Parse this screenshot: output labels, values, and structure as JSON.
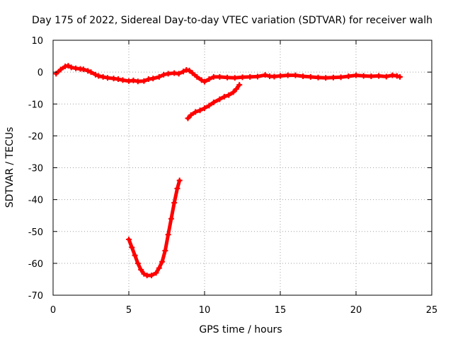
{
  "chart_data": {
    "type": "scatter",
    "title": "Day 175 of 2022, Sidereal Day-to-day VTEC variation (SDTVAR) for receiver walh",
    "xlabel": "GPS time / hours",
    "ylabel": "SDTVAR / TECUs",
    "xlim": [
      0,
      25
    ],
    "ylim": [
      -70,
      10
    ],
    "xticks": [
      0,
      5,
      10,
      15,
      20,
      25
    ],
    "yticks": [
      10,
      0,
      -10,
      -20,
      -30,
      -40,
      -50,
      -60,
      -70
    ],
    "xtick_labels": [
      "0",
      "5",
      "10",
      "15",
      "20",
      "25"
    ],
    "ytick_labels": [
      "10",
      "0",
      "-10",
      "-20",
      "-30",
      "-40",
      "-50",
      "-60",
      "-70"
    ],
    "grid": true,
    "marker": "+",
    "color": "#ff0000",
    "series": [
      {
        "name": "main-track",
        "points": [
          [
            0.2,
            -0.5
          ],
          [
            0.5,
            0.8
          ],
          [
            0.8,
            1.8
          ],
          [
            1.0,
            2.0
          ],
          [
            1.2,
            1.5
          ],
          [
            1.5,
            1.2
          ],
          [
            1.8,
            1.0
          ],
          [
            2.0,
            0.9
          ],
          [
            2.3,
            0.4
          ],
          [
            2.5,
            0.0
          ],
          [
            2.8,
            -0.8
          ],
          [
            3.0,
            -1.2
          ],
          [
            3.3,
            -1.5
          ],
          [
            3.6,
            -1.8
          ],
          [
            4.0,
            -2.0
          ],
          [
            4.3,
            -2.2
          ],
          [
            4.6,
            -2.5
          ],
          [
            5.0,
            -2.8
          ],
          [
            5.3,
            -2.6
          ],
          [
            5.6,
            -2.9
          ],
          [
            6.0,
            -2.8
          ],
          [
            6.3,
            -2.2
          ],
          [
            6.6,
            -2.0
          ],
          [
            7.0,
            -1.5
          ],
          [
            7.3,
            -0.8
          ],
          [
            7.6,
            -0.5
          ],
          [
            8.0,
            -0.3
          ],
          [
            8.3,
            -0.5
          ],
          [
            8.6,
            0.2
          ],
          [
            8.8,
            0.7
          ],
          [
            9.0,
            0.5
          ],
          [
            9.2,
            -0.3
          ],
          [
            9.5,
            -1.5
          ],
          [
            9.8,
            -2.5
          ],
          [
            10.0,
            -3.0
          ],
          [
            10.3,
            -2.2
          ],
          [
            10.6,
            -1.5
          ],
          [
            11.0,
            -1.5
          ],
          [
            11.5,
            -1.7
          ],
          [
            12.0,
            -1.8
          ],
          [
            12.5,
            -1.6
          ],
          [
            13.0,
            -1.5
          ],
          [
            13.5,
            -1.4
          ],
          [
            14.0,
            -0.9
          ],
          [
            14.3,
            -1.3
          ],
          [
            14.6,
            -1.4
          ],
          [
            15.0,
            -1.2
          ],
          [
            15.5,
            -1.0
          ],
          [
            16.0,
            -1.0
          ],
          [
            16.5,
            -1.3
          ],
          [
            17.0,
            -1.5
          ],
          [
            17.5,
            -1.7
          ],
          [
            18.0,
            -1.8
          ],
          [
            18.5,
            -1.7
          ],
          [
            19.0,
            -1.6
          ],
          [
            19.5,
            -1.3
          ],
          [
            20.0,
            -1.0
          ],
          [
            20.5,
            -1.2
          ],
          [
            21.0,
            -1.3
          ],
          [
            21.5,
            -1.2
          ],
          [
            22.0,
            -1.4
          ],
          [
            22.4,
            -1.0
          ],
          [
            22.7,
            -1.2
          ],
          [
            22.9,
            -1.5
          ]
        ]
      },
      {
        "name": "rising-arc",
        "points": [
          [
            8.9,
            -14.5
          ],
          [
            9.1,
            -13.5
          ],
          [
            9.4,
            -12.5
          ],
          [
            9.7,
            -12.0
          ],
          [
            10.0,
            -11.3
          ],
          [
            10.3,
            -10.5
          ],
          [
            10.6,
            -9.5
          ],
          [
            11.0,
            -8.5
          ],
          [
            11.3,
            -7.7
          ],
          [
            11.6,
            -7.2
          ],
          [
            11.9,
            -6.3
          ],
          [
            12.1,
            -5.3
          ],
          [
            12.3,
            -4.0
          ]
        ]
      },
      {
        "name": "deep-dip",
        "points": [
          [
            5.0,
            -52.5
          ],
          [
            5.2,
            -55.0
          ],
          [
            5.4,
            -57.5
          ],
          [
            5.6,
            -60.0
          ],
          [
            5.8,
            -62.0
          ],
          [
            6.0,
            -63.3
          ],
          [
            6.2,
            -63.8
          ],
          [
            6.5,
            -63.8
          ],
          [
            6.8,
            -63.0
          ],
          [
            7.0,
            -61.5
          ],
          [
            7.2,
            -59.5
          ],
          [
            7.4,
            -56.0
          ],
          [
            7.6,
            -51.0
          ],
          [
            7.8,
            -46.0
          ],
          [
            8.0,
            -41.0
          ],
          [
            8.2,
            -36.5
          ],
          [
            8.35,
            -34.0
          ]
        ]
      }
    ]
  }
}
